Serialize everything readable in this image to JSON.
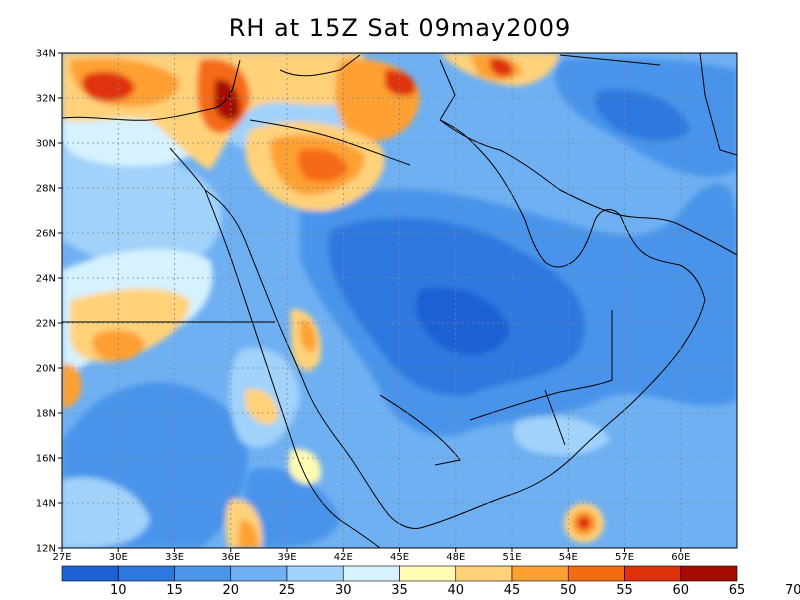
{
  "title": "RH at 15Z Sat 09may2009",
  "colors": {
    "c1": "#1e61d4",
    "c2": "#2d78e0",
    "c3": "#4a94ea",
    "c4": "#6fb0f2",
    "c5": "#a0d2fa",
    "c6": "#d6f2ff",
    "c7": "#fffbb3",
    "c8": "#ffd27a",
    "c9": "#ffa030",
    "c10": "#f56b12",
    "c11": "#df3208",
    "c12": "#a60a00"
  },
  "chart_data": {
    "type": "heatmap",
    "variable": "RH",
    "lat_labels": [
      "34N",
      "32N",
      "30N",
      "28N",
      "26N",
      "24N",
      "22N",
      "20N",
      "18N",
      "16N",
      "14N",
      "12N"
    ],
    "lon_labels": [
      "27E",
      "30E",
      "33E",
      "36E",
      "39E",
      "42E",
      "45E",
      "48E",
      "51E",
      "54E",
      "57E",
      "60E"
    ],
    "lat_range": [
      12,
      34
    ],
    "lon_range": [
      27,
      63
    ],
    "grid": true,
    "colorbar": {
      "labels": [
        "10",
        "15",
        "20",
        "25",
        "30",
        "35",
        "40",
        "45",
        "50",
        "55",
        "60",
        "65",
        "70"
      ],
      "colors": [
        "#1e61d4",
        "#2d78e0",
        "#4a94ea",
        "#6fb0f2",
        "#a0d2fa",
        "#d6f2ff",
        "#fffbb3",
        "#ffd27a",
        "#ffa030",
        "#f56b12",
        "#df3208",
        "#a60a00"
      ]
    }
  }
}
